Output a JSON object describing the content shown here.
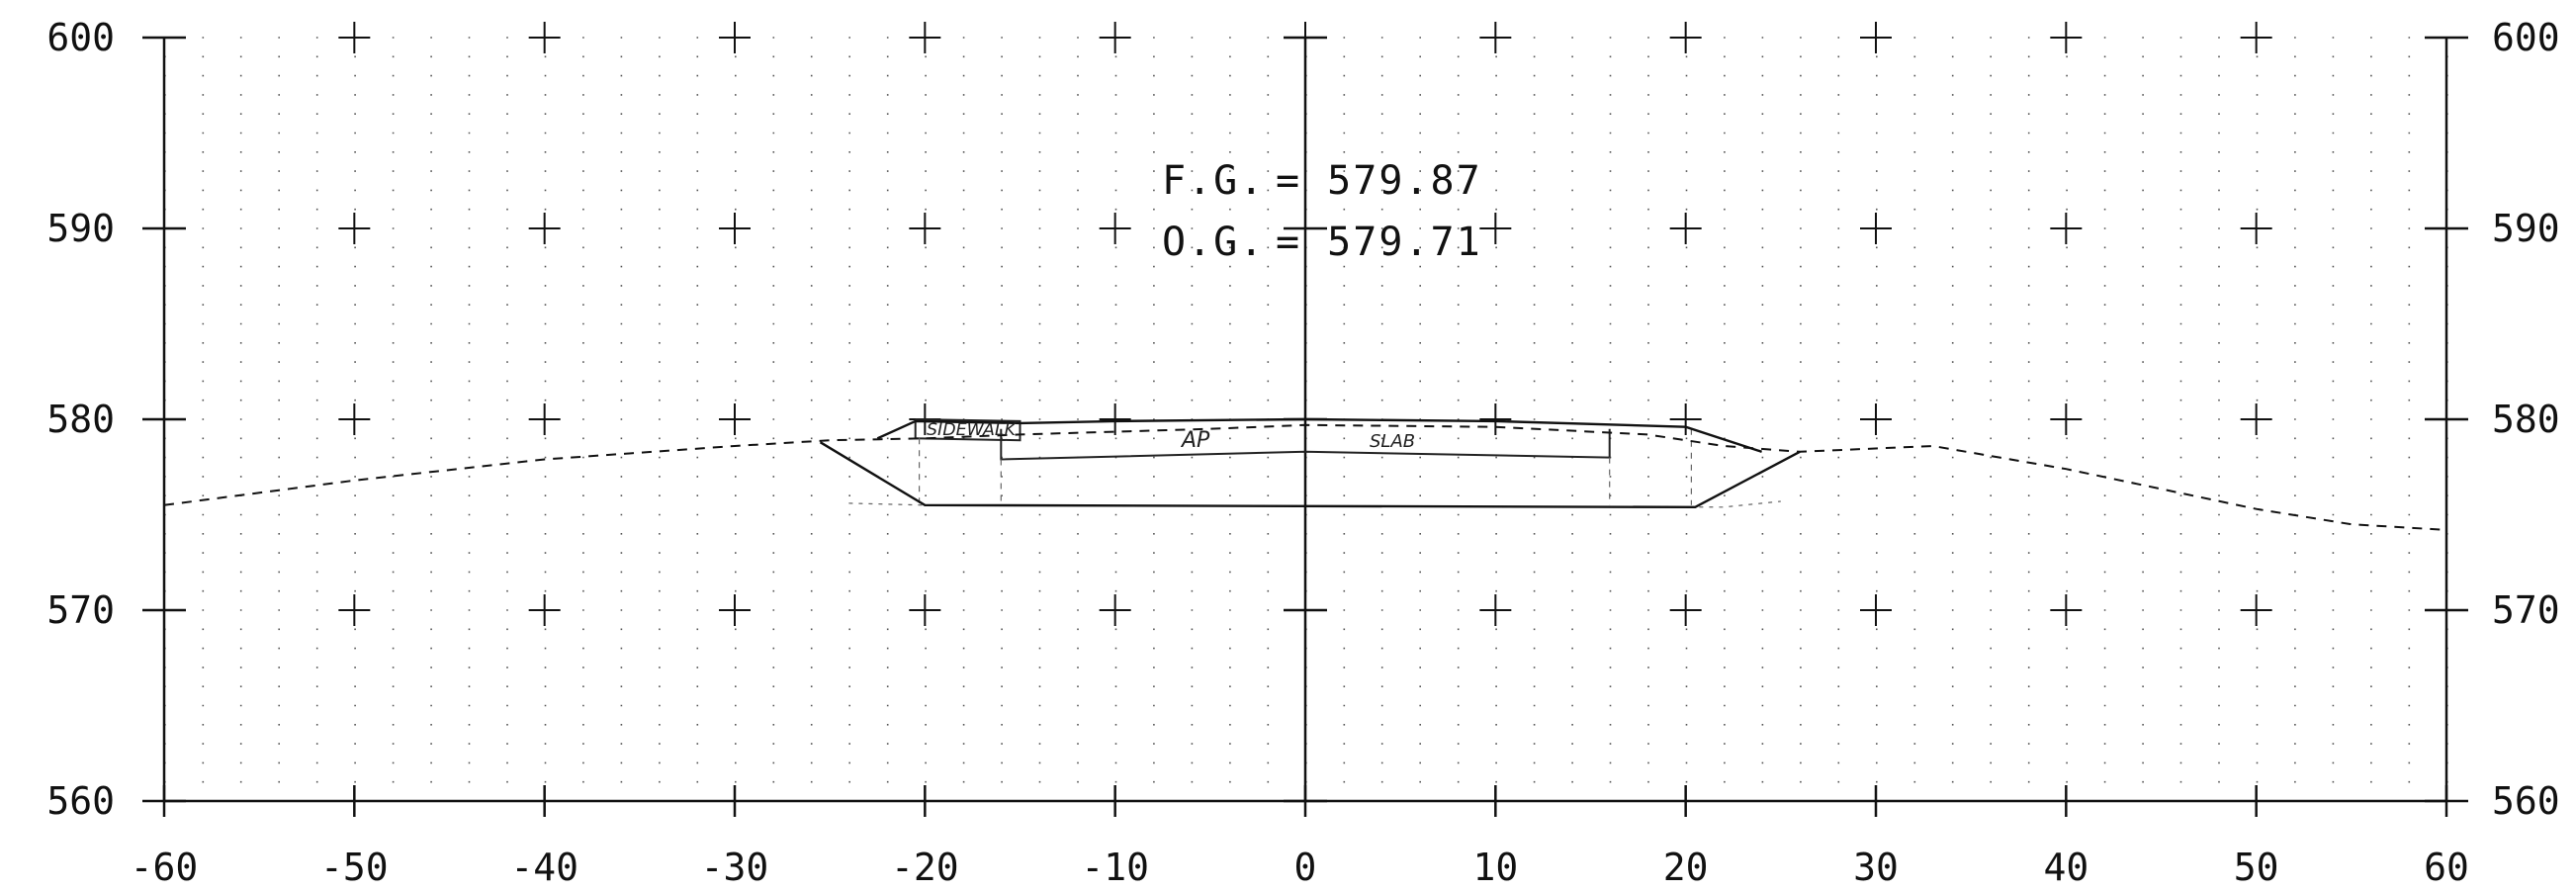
{
  "chart_data": {
    "type": "line",
    "title": "",
    "xlabel": "",
    "ylabel": "",
    "xlim": [
      -60,
      60
    ],
    "ylim": [
      560,
      600
    ],
    "x_ticks": [
      -60,
      -50,
      -40,
      -30,
      -20,
      -10,
      0,
      10,
      20,
      30,
      40,
      50,
      60
    ],
    "x_tick_labels": [
      "-60",
      "-50",
      "-40",
      "-30",
      "-20",
      "-10",
      "0",
      "10",
      "20",
      "30",
      "40",
      "50",
      "60"
    ],
    "y_ticks": [
      560,
      570,
      580,
      590,
      600
    ],
    "y_tick_labels_left": [
      "560",
      "570",
      "580",
      "590",
      "600"
    ],
    "y_tick_labels_right": [
      "560",
      "570",
      "580",
      "590",
      "600"
    ],
    "grid": "dotted",
    "annotations": [
      {
        "label": "F.G.",
        "value": "= 579.87"
      },
      {
        "label": "O.G.",
        "value": "= 579.71"
      }
    ],
    "region_labels": [
      "SIDEWALK",
      "AP",
      "SLAB"
    ],
    "series": [
      {
        "style": "dashed",
        "points": [
          [
            -60,
            575.5
          ],
          [
            -50,
            576.8
          ],
          [
            -40,
            577.9
          ],
          [
            -30,
            578.6
          ],
          [
            -25,
            578.9
          ],
          [
            -20,
            579.0
          ],
          [
            -15,
            579.2
          ],
          [
            -5,
            579.5
          ],
          [
            0,
            579.7
          ],
          [
            10,
            579.6
          ],
          [
            18,
            579.2
          ],
          [
            22,
            578.6
          ],
          [
            26,
            578.3
          ],
          [
            33,
            578.6
          ],
          [
            40,
            577.4
          ],
          [
            50,
            575.3
          ],
          [
            55,
            574.5
          ],
          [
            60,
            574.2
          ]
        ]
      },
      {
        "style": "solid",
        "points": [
          [
            -25.5,
            578.8
          ],
          [
            -20,
            575.5
          ],
          [
            20.5,
            575.4
          ],
          [
            26,
            578.3
          ]
        ]
      },
      {
        "style": "solid",
        "points": [
          [
            -22.5,
            579.0
          ],
          [
            -20.5,
            579.9
          ],
          [
            -15,
            579.8
          ],
          [
            -10,
            579.9
          ],
          [
            0,
            580.0
          ],
          [
            10,
            579.9
          ],
          [
            20,
            579.6
          ],
          [
            24,
            578.3
          ]
        ]
      }
    ]
  }
}
